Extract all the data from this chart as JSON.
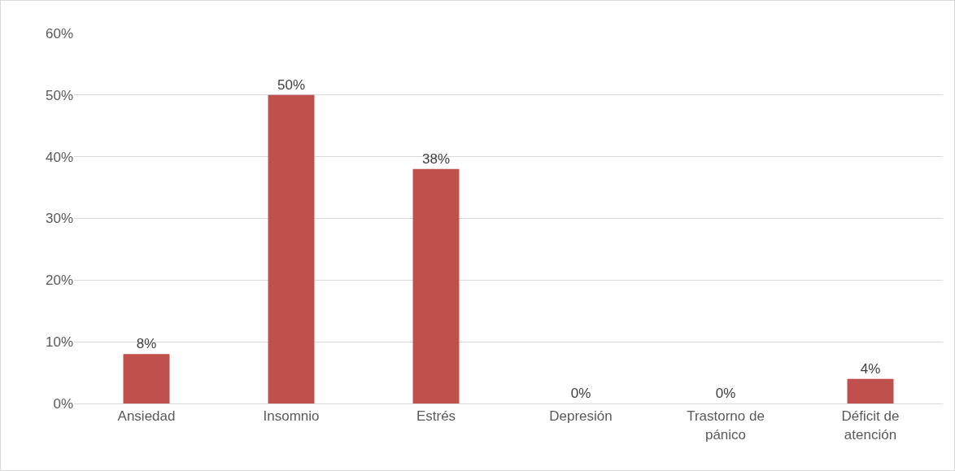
{
  "chart_data": {
    "type": "bar",
    "categories": [
      "Ansiedad",
      "Insomnio",
      "Estrés",
      "Depresión",
      "Trastorno de pánico",
      "Déficit de atención"
    ],
    "values": [
      8,
      50,
      38,
      0,
      0,
      4
    ],
    "value_labels": [
      "8%",
      "50%",
      "38%",
      "0%",
      "0%",
      "4%"
    ],
    "color": "#c0504d",
    "ylim": [
      0,
      60
    ],
    "yticks": [
      {
        "value": 0,
        "label": "0%"
      },
      {
        "value": 10,
        "label": "10%"
      },
      {
        "value": 20,
        "label": "20%"
      },
      {
        "value": 30,
        "label": "30%"
      },
      {
        "value": 40,
        "label": "40%"
      },
      {
        "value": 50,
        "label": "50%"
      },
      {
        "value": 60,
        "label": "60%"
      }
    ],
    "grid": "y"
  }
}
